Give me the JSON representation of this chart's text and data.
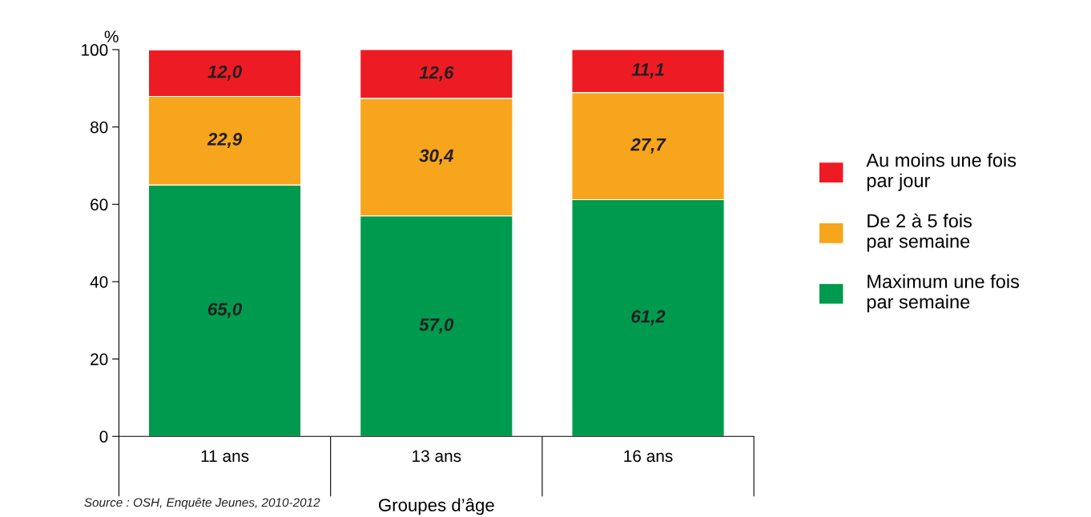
{
  "chart_data": {
    "type": "bar",
    "stacked": true,
    "categories": [
      "11 ans",
      "13 ans",
      "16 ans"
    ],
    "series": [
      {
        "name": "Maximum une fois\npar semaine",
        "color": "#009a4e",
        "values": [
          65.0,
          57.0,
          61.2
        ],
        "value_labels": [
          "65,0",
          "57,0",
          "61,2"
        ]
      },
      {
        "name": "De 2 à 5 fois\npar semaine",
        "color": "#f7a51c",
        "values": [
          22.9,
          30.4,
          27.7
        ],
        "value_labels": [
          "22,9",
          "30,4",
          "27,7"
        ]
      },
      {
        "name": "Au moins une fois\npar jour",
        "color": "#ed1c24",
        "values": [
          12.0,
          12.6,
          11.1
        ],
        "value_labels": [
          "12,0",
          "12,6",
          "11,1"
        ]
      }
    ],
    "ylim": [
      0,
      100
    ],
    "yticks": [
      0,
      20,
      40,
      60,
      80,
      100
    ],
    "ylabel": "%",
    "xlabel": "Groupes d’âge",
    "legend": "right",
    "grid": false,
    "annotations": [
      "Source : OSH, Enquête Jeunes, 2010-2012"
    ]
  }
}
